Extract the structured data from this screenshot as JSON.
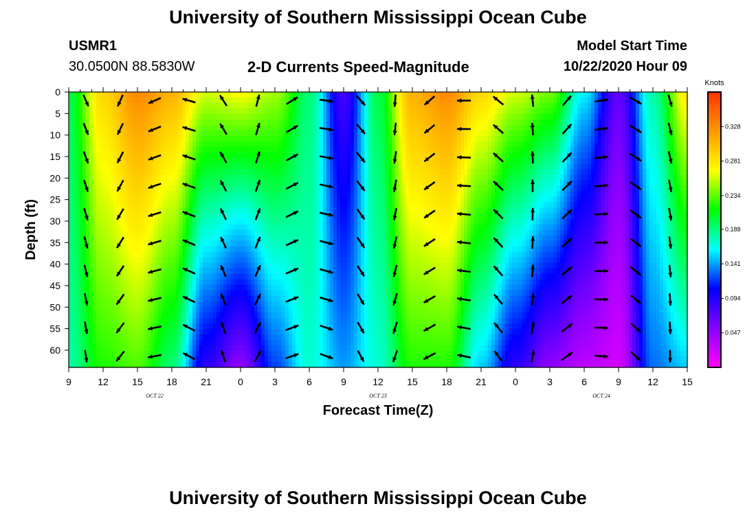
{
  "header": {
    "title": "University of Southern Mississippi Ocean Cube",
    "station_id": "USMR1",
    "station_coords": "30.0500N 88.5830W",
    "plot_title": "2-D Currents Speed-Magnitude",
    "model_start_label": "Model Start Time",
    "model_start_value": "10/22/2020 Hour 09"
  },
  "footer": {
    "title": "University of Southern Mississippi Ocean Cube"
  },
  "chart_data": {
    "type": "heatmap",
    "title": "2-D Currents Speed-Magnitude",
    "xlabel": "Forecast Time(Z)",
    "ylabel": "Depth (ft)",
    "x_tick_labels": [
      "9",
      "12",
      "15",
      "18",
      "21",
      "0",
      "3",
      "6",
      "9",
      "12",
      "15",
      "18",
      "21",
      "0",
      "3",
      "6",
      "9",
      "12",
      "15"
    ],
    "x_hours_from_start": [
      0,
      3,
      6,
      9,
      12,
      15,
      18,
      21,
      24,
      27,
      30,
      33,
      36,
      39,
      42,
      45,
      48,
      51,
      54
    ],
    "date_labels": [
      {
        "label": "OCT 22",
        "hour": 7.5
      },
      {
        "label": "OCT 23",
        "hour": 27
      },
      {
        "label": "OCT 24",
        "hour": 46.5
      }
    ],
    "xlim_hours": [
      0,
      54
    ],
    "ylim_depth_ft": [
      0,
      64
    ],
    "y_ticks": [
      0,
      5,
      10,
      15,
      20,
      25,
      30,
      35,
      40,
      45,
      50,
      55,
      60
    ],
    "y_inverted": true,
    "colorbar": {
      "label": "Knots",
      "ticks": [
        "0.328",
        "0.281",
        "0.234",
        "0.188",
        "0.141",
        "0.094",
        "0.047"
      ],
      "tick_values": [
        0.328,
        0.281,
        0.234,
        0.188,
        0.141,
        0.094,
        0.047
      ],
      "range": [
        0.0,
        0.375
      ]
    },
    "series": [
      {
        "values": [
          {
            "hour": 0,
            "surface": 0.2,
            "bottom": 0.18
          },
          {
            "hour": 3,
            "surface": 0.29,
            "bottom": 0.22
          },
          {
            "hour": 6,
            "surface": 0.33,
            "bottom": 0.23
          },
          {
            "hour": 9,
            "surface": 0.31,
            "bottom": 0.19
          },
          {
            "hour": 12,
            "surface": 0.26,
            "bottom": 0.09
          },
          {
            "hour": 15,
            "surface": 0.27,
            "bottom": 0.05
          },
          {
            "hour": 18,
            "surface": 0.25,
            "bottom": 0.12
          },
          {
            "hour": 21,
            "surface": 0.19,
            "bottom": 0.17
          },
          {
            "hour": 24,
            "surface": 0.08,
            "bottom": 0.14
          },
          {
            "hour": 27,
            "surface": 0.2,
            "bottom": 0.17
          },
          {
            "hour": 30,
            "surface": 0.31,
            "bottom": 0.22
          },
          {
            "hour": 33,
            "surface": 0.33,
            "bottom": 0.22
          },
          {
            "hour": 36,
            "surface": 0.29,
            "bottom": 0.15
          },
          {
            "hour": 39,
            "surface": 0.26,
            "bottom": 0.09
          },
          {
            "hour": 42,
            "surface": 0.24,
            "bottom": 0.05
          },
          {
            "hour": 45,
            "surface": 0.16,
            "bottom": 0.03
          },
          {
            "hour": 48,
            "surface": 0.07,
            "bottom": 0.02
          },
          {
            "hour": 51,
            "surface": 0.18,
            "bottom": 0.13
          },
          {
            "hour": 54,
            "surface": 0.28,
            "bottom": 0.15
          }
        ]
      }
    ]
  },
  "colors": {
    "colormap": [
      "#ff00ff",
      "#8800ff",
      "#0000ff",
      "#00ffff",
      "#00ff00",
      "#ffff00",
      "#ff9900",
      "#ff3300"
    ],
    "arrow": "#000000"
  }
}
